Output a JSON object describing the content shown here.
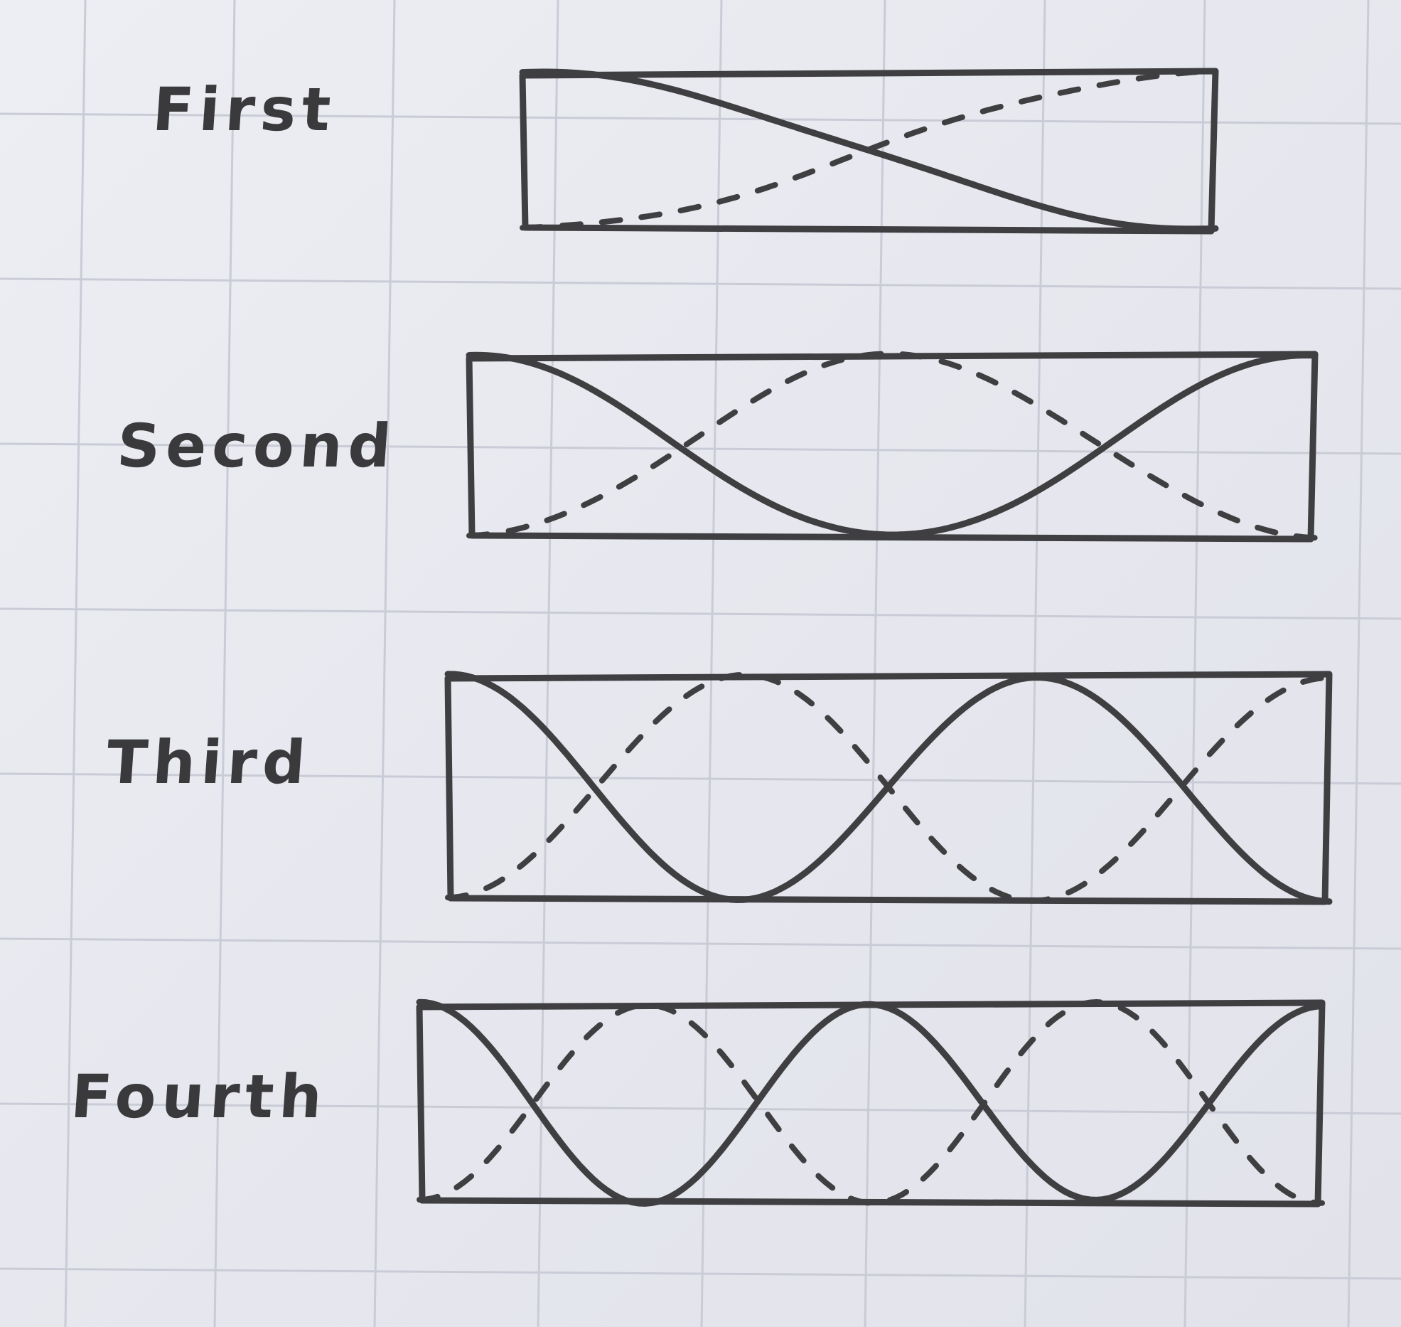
{
  "modes": [
    {
      "label": "First",
      "n": 1
    },
    {
      "label": "Second",
      "n": 2
    },
    {
      "label": "Third",
      "n": 3
    },
    {
      "label": "Fourth",
      "n": 4
    }
  ],
  "colors": {
    "paper": "#e9eaf0",
    "grid": "#c9cbd6",
    "ink": "#3f3f42"
  }
}
